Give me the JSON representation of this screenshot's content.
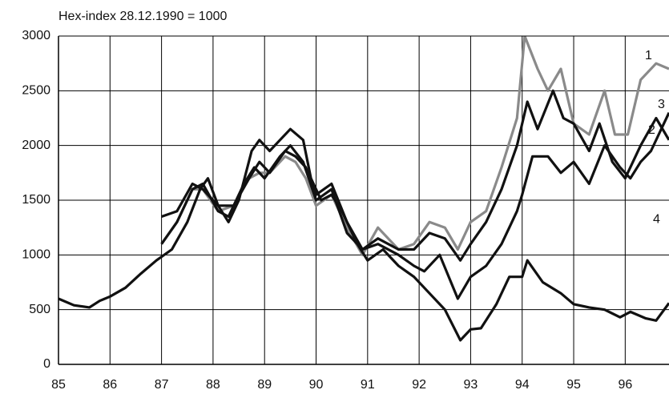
{
  "chart_data": {
    "type": "line",
    "title": "Hex-index 28.12.1990 = 1000",
    "xlim": [
      85,
      96.85
    ],
    "xticks": [
      85,
      86,
      87,
      88,
      89,
      90,
      91,
      92,
      93,
      94,
      95,
      96
    ],
    "ylim": [
      0,
      3000
    ],
    "yticks": [
      0,
      500,
      1000,
      1500,
      2000,
      2500,
      3000
    ],
    "grid": true,
    "series": [
      {
        "name": "1",
        "color": "#8a8a8a",
        "x": [
          87,
          87.3,
          87.6,
          87.8,
          88.1,
          88.4,
          88.7,
          88.9,
          89.1,
          89.4,
          89.6,
          89.8,
          90,
          90.3,
          90.6,
          90.9,
          91.2,
          91.6,
          91.9,
          92.2,
          92.5,
          92.75,
          93,
          93.3,
          93.6,
          93.9,
          94.05,
          94.3,
          94.5,
          94.75,
          95,
          95.3,
          95.6,
          95.8,
          96.05,
          96.3,
          96.6,
          96.85
        ],
        "values": [
          1100,
          1300,
          1600,
          1600,
          1400,
          1450,
          1700,
          1750,
          1750,
          1900,
          1850,
          1700,
          1450,
          1550,
          1250,
          1000,
          1250,
          1050,
          1100,
          1300,
          1250,
          1050,
          1300,
          1400,
          1800,
          2250,
          3000,
          2700,
          2500,
          2700,
          2200,
          2100,
          2500,
          2100,
          2100,
          2600,
          2750,
          2700
        ]
      },
      {
        "name": "2",
        "color": "#111111",
        "x": [
          87,
          87.3,
          87.6,
          87.8,
          88.1,
          88.4,
          88.7,
          88.9,
          89.1,
          89.4,
          89.6,
          89.8,
          90,
          90.3,
          90.6,
          90.9,
          91.2,
          91.6,
          91.9,
          92.2,
          92.5,
          92.8,
          93,
          93.3,
          93.6,
          93.9,
          94.1,
          94.3,
          94.6,
          94.8,
          95,
          95.3,
          95.5,
          95.75,
          96,
          96.3,
          96.6,
          96.85
        ],
        "values": [
          1350,
          1400,
          1650,
          1600,
          1450,
          1450,
          1700,
          1850,
          1750,
          1950,
          1900,
          1800,
          1550,
          1650,
          1300,
          1050,
          1150,
          1050,
          1050,
          1200,
          1150,
          950,
          1100,
          1300,
          1600,
          2000,
          2400,
          2150,
          2500,
          2250,
          2200,
          1950,
          2200,
          1850,
          1700,
          2000,
          2250,
          2050
        ]
      },
      {
        "name": "3",
        "color": "#111111",
        "x": [
          87,
          87.3,
          87.6,
          87.8,
          88.1,
          88.3,
          88.6,
          88.8,
          89,
          89.3,
          89.5,
          89.75,
          90,
          90.3,
          90.6,
          90.9,
          91.2,
          91.6,
          91.9,
          92.1,
          92.4,
          92.75,
          93,
          93.3,
          93.6,
          93.9,
          94,
          94.2,
          94.5,
          94.75,
          95,
          95.3,
          95.6,
          95.9,
          96.1,
          96.3,
          96.5,
          96.85
        ],
        "values": [
          1100,
          1300,
          1600,
          1650,
          1400,
          1350,
          1650,
          1800,
          1700,
          1900,
          2000,
          1850,
          1500,
          1600,
          1200,
          1050,
          1100,
          1000,
          900,
          850,
          1000,
          600,
          800,
          900,
          1100,
          1400,
          1550,
          1900,
          1900,
          1750,
          1850,
          1650,
          2000,
          1800,
          1700,
          1850,
          1950,
          2300
        ]
      },
      {
        "name": "4",
        "color": "#111111",
        "x": [
          85,
          85.3,
          85.6,
          85.8,
          86,
          86.3,
          86.6,
          86.9,
          87.2,
          87.5,
          87.75,
          87.9,
          88.1,
          88.3,
          88.5,
          88.75,
          88.9,
          89.1,
          89.3,
          89.5,
          89.75,
          89.9,
          90.1,
          90.3,
          90.5,
          90.8,
          91,
          91.3,
          91.6,
          91.9,
          92.2,
          92.5,
          92.8,
          93,
          93.2,
          93.5,
          93.75,
          94,
          94.1,
          94.4,
          94.75,
          95,
          95.3,
          95.6,
          95.9,
          96.1,
          96.4,
          96.6,
          96.85
        ],
        "values": [
          600,
          540,
          520,
          580,
          620,
          700,
          830,
          950,
          1050,
          1300,
          1600,
          1700,
          1450,
          1300,
          1500,
          1950,
          2050,
          1950,
          2050,
          2150,
          2050,
          1700,
          1500,
          1550,
          1400,
          1100,
          950,
          1050,
          900,
          800,
          650,
          500,
          220,
          320,
          330,
          550,
          800,
          800,
          950,
          750,
          650,
          550,
          520,
          500,
          430,
          480,
          420,
          400,
          560
        ]
      }
    ]
  }
}
